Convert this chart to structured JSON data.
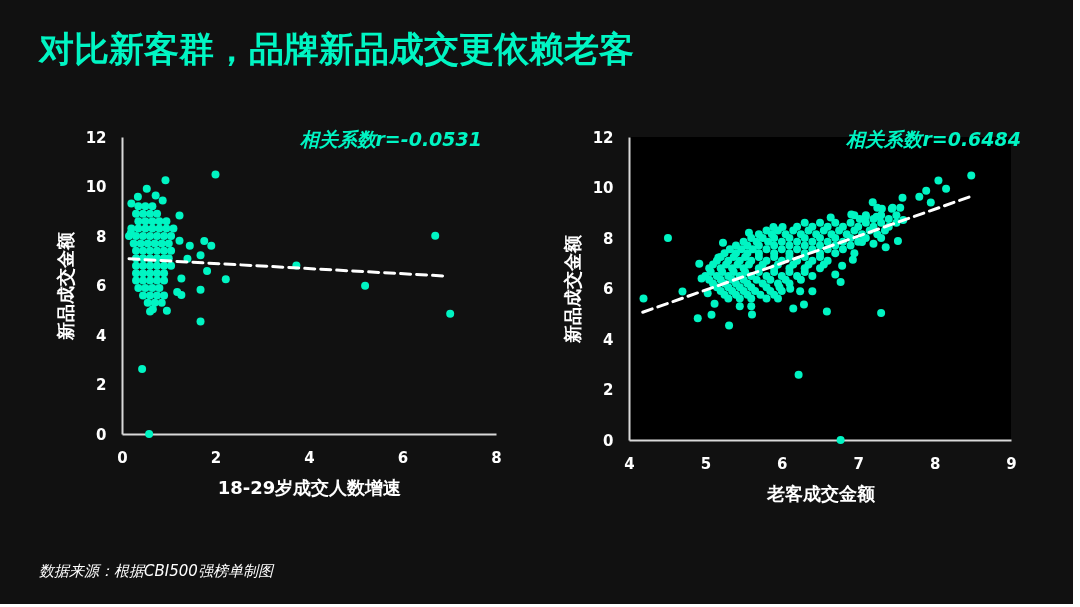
{
  "chart_data": [
    {
      "type": "scatter",
      "title": "对比新客群，品牌新品成交更依赖老客",
      "xlabel": "18-29岁成交人数增速",
      "ylabel": "新品成交金额",
      "xlim": [
        0,
        8
      ],
      "ylim": [
        0,
        12
      ],
      "xticks": [
        0,
        2,
        4,
        6,
        8
      ],
      "yticks": [
        0,
        2,
        4,
        6,
        8,
        10,
        12
      ],
      "annotations": [
        "相关系数r=-0.0531",
        "数据来源：根据CBI500强榜单制图"
      ],
      "series": [
        {
          "marker": "circle",
          "color": "#00f5c3",
          "x": [
            2.0,
            0.93,
            6.7,
            7.02,
            5.2,
            3.73,
            2.22,
            1.82,
            1.68,
            1.76,
            1.91,
            1.45,
            1.23,
            1.23,
            1.4,
            1.27,
            1.68,
            1.18,
            1.27,
            1.68,
            0.96,
            0.43,
            0.58,
            0.53,
            0.34,
            0.2,
            0.72,
            0.87,
            0.19,
            0.66,
            0.6,
            0.35,
            0.5,
            0.65,
            0.3,
            0.45,
            0.6,
            0.75,
            0.35,
            0.5,
            0.65,
            0.8,
            0.95,
            0.2,
            0.35,
            0.5,
            0.65,
            0.8,
            0.95,
            1.1,
            0.15,
            0.3,
            0.45,
            0.6,
            0.75,
            0.9,
            1.05,
            0.25,
            0.4,
            0.55,
            0.7,
            0.85,
            1.0,
            0.3,
            0.45,
            0.6,
            0.75,
            0.9,
            1.05,
            0.3,
            0.45,
            0.6,
            0.75,
            0.9,
            1.0,
            0.3,
            0.45,
            0.6,
            0.75,
            0.9,
            1.05,
            0.3,
            0.45,
            0.6,
            0.75,
            0.9,
            0.3,
            0.45,
            0.6,
            0.75,
            0.9,
            0.35,
            0.5,
            0.65,
            0.8,
            0.45,
            0.6,
            0.75,
            0.9,
            0.55,
            0.7,
            0.85
          ],
          "values": [
            10.48,
            10.25,
            8.01,
            4.86,
            5.99,
            6.81,
            6.25,
            6.59,
            7.22,
            7.8,
            7.61,
            7.61,
            7.81,
            8.83,
            7.08,
            6.28,
            5.83,
            5.74,
            5.62,
            4.55,
            4.98,
            2.63,
            0,
            9.91,
            9.59,
            9.31,
            9.64,
            9.43,
            8.12,
            5.04,
            4.95,
            9.2,
            9.2,
            9.2,
            8.9,
            8.9,
            8.9,
            8.9,
            8.6,
            8.6,
            8.6,
            8.6,
            8.6,
            8.3,
            8.3,
            8.3,
            8.3,
            8.3,
            8.3,
            8.3,
            8.0,
            8.0,
            8.0,
            8.0,
            8.0,
            8.0,
            8.0,
            7.7,
            7.7,
            7.7,
            7.7,
            7.7,
            7.7,
            7.4,
            7.4,
            7.4,
            7.4,
            7.4,
            7.4,
            7.1,
            7.1,
            7.1,
            7.1,
            7.1,
            7.1,
            6.8,
            6.8,
            6.8,
            6.8,
            6.8,
            6.8,
            6.5,
            6.5,
            6.5,
            6.5,
            6.5,
            6.2,
            6.2,
            6.2,
            6.2,
            6.2,
            5.9,
            5.9,
            5.9,
            5.9,
            5.6,
            5.6,
            5.6,
            5.6,
            5.3,
            5.3,
            5.3
          ]
        },
        {
          "type": "line",
          "line_style": "dashed",
          "color": "#ffffff",
          "x": [
            0.15,
            6.94
          ],
          "values": [
            7.08,
            6.38
          ]
        }
      ]
    },
    {
      "type": "scatter",
      "xlabel": "老客成交金额",
      "ylabel": "新品成交金额",
      "xlim": [
        4,
        9
      ],
      "ylim": [
        0,
        12
      ],
      "xticks": [
        4,
        5,
        6,
        7,
        8,
        9
      ],
      "yticks": [
        0,
        2,
        4,
        6,
        8,
        10,
        12
      ],
      "annotations": [
        "相关系数r=0.6484"
      ],
      "series": [
        {
          "marker": "circle",
          "color": "#00f5c3",
          "x": [
            4.19,
            4.51,
            4.7,
            4.9,
            5.08,
            5.31,
            4.92,
            4.95,
            5.12,
            5.03,
            6.22,
            6.77,
            7.3,
            6.59,
            6.15,
            6.29,
            5.61,
            5.57,
            6.64,
            7.19,
            7.58,
            7.8,
            7.89,
            8.05,
            8.15,
            8.48,
            7.95,
            7.52,
            7.36,
            7.59,
            6.93,
            6.79,
            6.77,
            6.7,
            6.4,
            6.24,
            6.11,
            5.89,
            6.01,
            5.23,
            5.17,
            6.91,
            7.1,
            7.24,
            7.31,
            7.44,
            7.2,
            7.05,
            7.25,
            7.45,
            7.55,
            6.95,
            7.1,
            7.3,
            7.5,
            6.3,
            6.5,
            6.7,
            6.9,
            7.1,
            7.3,
            7.5,
            5.8,
            5.95,
            6.15,
            6.35,
            6.55,
            6.75,
            6.95,
            7.15,
            7.35,
            5.6,
            5.75,
            5.9,
            6.1,
            6.3,
            6.5,
            6.7,
            6.9,
            7.1,
            7.3,
            5.4,
            5.55,
            5.7,
            5.9,
            6.1,
            6.3,
            6.5,
            6.7,
            6.9,
            5.25,
            5.4,
            5.55,
            5.7,
            5.9,
            6.1,
            6.3,
            6.5,
            6.7,
            6.95,
            5.15,
            5.3,
            5.45,
            5.6,
            5.8,
            6.0,
            6.2,
            6.4,
            6.6,
            5.05,
            5.2,
            5.35,
            5.5,
            5.7,
            5.9,
            6.1,
            6.3,
            6.5,
            5.0,
            5.15,
            5.3,
            5.45,
            5.6,
            5.8,
            6.0,
            6.2,
            6.4,
            5.1,
            5.25,
            5.4,
            5.55,
            5.75,
            5.95,
            6.1,
            5.2,
            5.35,
            5.5,
            5.65,
            5.85,
            6.0,
            5.3,
            5.45,
            5.6,
            5.8,
            5.95,
            5.45,
            5.6,
            7.02,
            7.2,
            7.4,
            6.2,
            6.4,
            6.6,
            6.8,
            7.0,
            7.2,
            7.4,
            5.7,
            5.87,
            6.05,
            6.25,
            6.45,
            6.65,
            6.85,
            7.05,
            7.25,
            5.5,
            5.67,
            5.82,
            6.0,
            6.2,
            6.4,
            6.6,
            6.8,
            7.0,
            5.32,
            5.47,
            5.62,
            5.8,
            6.0,
            6.2,
            6.4,
            6.6,
            6.8,
            5.2,
            5.37,
            5.52,
            5.7,
            5.9,
            6.1,
            6.3,
            6.5,
            5.1,
            5.27,
            5.42,
            5.57,
            5.75,
            5.95,
            6.15,
            6.35,
            6.55,
            5.07,
            5.22,
            5.37,
            5.52,
            5.7,
            5.9,
            6.1,
            6.3,
            5.05,
            5.2,
            5.35,
            5.5,
            5.67,
            5.85,
            6.05,
            6.25,
            5.15,
            5.3,
            5.45,
            5.6,
            5.8,
            5.97,
            5.25,
            5.4,
            5.55,
            5.72,
            5.9
          ],
          "values": [
            5.6,
            8.0,
            5.88,
            4.82,
            4.96,
            4.53,
            6.98,
            6.4,
            5.4,
            5.81,
            2.58,
            0,
            5.03,
            5.09,
            5.21,
            5.37,
            4.97,
            8.21,
            8.81,
            9.42,
            9.59,
            9.63,
            9.87,
            10.28,
            9.95,
            10.48,
            9.41,
            7.88,
            7.63,
            8.71,
            7.14,
            6.9,
            6.26,
            6.55,
            5.89,
            5.89,
            5.99,
            8.44,
            8.44,
            7.81,
            7.23,
            8.93,
            8.84,
            8.84,
            9.16,
            9.16,
            7.77,
            7.84,
            9.2,
            9.2,
            9.2,
            8.9,
            8.9,
            8.9,
            8.9,
            8.6,
            8.6,
            8.6,
            8.6,
            8.6,
            8.6,
            8.6,
            8.3,
            8.3,
            8.3,
            8.3,
            8.3,
            8.3,
            8.3,
            8.3,
            8.3,
            8.0,
            8.0,
            8.0,
            8.0,
            8.0,
            8.0,
            8.0,
            8.0,
            8.0,
            8.0,
            7.7,
            7.7,
            7.7,
            7.7,
            7.7,
            7.7,
            7.7,
            7.7,
            7.7,
            7.4,
            7.4,
            7.4,
            7.4,
            7.4,
            7.4,
            7.4,
            7.4,
            7.4,
            7.4,
            7.1,
            7.1,
            7.1,
            7.1,
            7.1,
            7.1,
            7.1,
            7.1,
            7.1,
            6.8,
            6.8,
            6.8,
            6.8,
            6.8,
            6.8,
            6.8,
            6.8,
            6.8,
            6.5,
            6.5,
            6.5,
            6.5,
            6.5,
            6.5,
            6.5,
            6.5,
            6.5,
            6.2,
            6.2,
            6.2,
            6.2,
            6.2,
            6.2,
            6.2,
            5.9,
            5.9,
            5.9,
            5.9,
            5.9,
            5.9,
            5.6,
            5.6,
            5.6,
            5.6,
            5.6,
            5.3,
            5.3,
            8.75,
            8.75,
            8.75,
            8.45,
            8.45,
            8.45,
            8.45,
            8.45,
            8.45,
            8.45,
            8.15,
            8.15,
            8.15,
            8.15,
            8.15,
            8.15,
            8.15,
            8.15,
            8.15,
            7.85,
            7.85,
            7.85,
            7.85,
            7.85,
            7.85,
            7.85,
            7.85,
            7.85,
            7.55,
            7.55,
            7.55,
            7.55,
            7.55,
            7.55,
            7.55,
            7.55,
            7.55,
            7.25,
            7.25,
            7.25,
            7.25,
            7.25,
            7.25,
            7.25,
            7.25,
            6.95,
            6.95,
            6.95,
            6.95,
            6.95,
            6.95,
            6.95,
            6.95,
            6.95,
            6.65,
            6.65,
            6.65,
            6.65,
            6.65,
            6.65,
            6.65,
            6.65,
            6.35,
            6.35,
            6.35,
            6.35,
            6.35,
            6.35,
            6.35,
            6.35,
            6.05,
            6.05,
            6.05,
            6.05,
            6.05,
            6.05,
            5.75,
            5.75,
            5.75,
            5.75,
            5.75
          ]
        },
        {
          "type": "line",
          "line_style": "dashed",
          "color": "#ffffff",
          "x": [
            4.18,
            8.45
          ],
          "values": [
            5.06,
            9.62
          ]
        }
      ]
    }
  ]
}
